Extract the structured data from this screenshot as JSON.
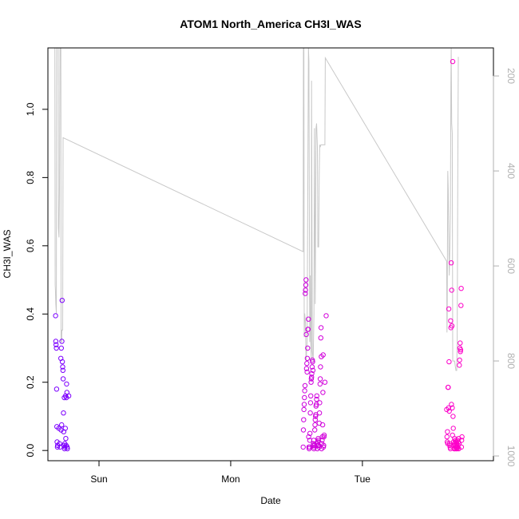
{
  "chart_data": {
    "type": "scatter",
    "title": "ATOM1 North_America CH3I_WAS",
    "xlabel": "Date",
    "ylabel": "CH3I_WAS",
    "x_ticks": [
      {
        "label": "Sun",
        "value": 1.0
      },
      {
        "label": "Mon",
        "value": 2.0
      },
      {
        "label": "Tue",
        "value": 3.0
      }
    ],
    "xlim": [
      0.612,
      3.995
    ],
    "ylim": [
      -0.03,
      1.18
    ],
    "y_ticks": [
      "0.0",
      "0.2",
      "0.4",
      "0.6",
      "0.8",
      "1.0"
    ],
    "y_tick_values": [
      0.0,
      0.2,
      0.4,
      0.6,
      0.8,
      1.0
    ],
    "y2_label": "",
    "y2_ticks": [
      "200",
      "400",
      "600",
      "800",
      "1000"
    ],
    "y2_tick_values": [
      200,
      400,
      600,
      800,
      1000
    ],
    "y2lim": [
      1010,
      141
    ],
    "grid": false,
    "point_color_start": "#7a00ff",
    "point_color_end": "#ff00c8",
    "line_color": "#c8c8c8",
    "series": [
      {
        "marker": "open-circle",
        "points": [
          [
            0.67,
            0.395
          ],
          [
            0.672,
            0.32
          ],
          [
            0.674,
            0.31
          ],
          [
            0.676,
            0.3
          ],
          [
            0.678,
            0.18
          ],
          [
            0.68,
            0.07
          ],
          [
            0.682,
            0.025
          ],
          [
            0.684,
            0.01
          ],
          [
            0.686,
            0.015
          ],
          [
            0.695,
            0.065
          ],
          [
            0.7,
            0.02
          ],
          [
            0.705,
            0.01
          ],
          [
            0.71,
            0.27
          ],
          [
            0.712,
            0.06
          ],
          [
            0.714,
            0.3
          ],
          [
            0.716,
            0.075
          ],
          [
            0.718,
            0.32
          ],
          [
            0.72,
            0.44
          ],
          [
            0.722,
            0.26
          ],
          [
            0.724,
            0.245
          ],
          [
            0.726,
            0.235
          ],
          [
            0.728,
            0.21
          ],
          [
            0.73,
            0.11
          ],
          [
            0.732,
            0.055
          ],
          [
            0.734,
            0.015
          ],
          [
            0.736,
            0.155
          ],
          [
            0.738,
            0.005
          ],
          [
            0.74,
            0.02
          ],
          [
            0.742,
            0.01
          ],
          [
            0.744,
            0.065
          ],
          [
            0.746,
            0.16
          ],
          [
            0.748,
            0.035
          ],
          [
            0.75,
            0.015
          ],
          [
            0.752,
            0.155
          ],
          [
            0.754,
            0.195
          ],
          [
            0.756,
            0.17
          ],
          [
            0.758,
            0.01
          ],
          [
            0.76,
            0.005
          ],
          [
            0.77,
            0.16
          ],
          [
            2.55,
            0.01
          ],
          [
            2.552,
            0.06
          ],
          [
            2.554,
            0.09
          ],
          [
            2.556,
            0.12
          ],
          [
            2.558,
            0.135
          ],
          [
            2.56,
            0.155
          ],
          [
            2.562,
            0.175
          ],
          [
            2.564,
            0.19
          ],
          [
            2.566,
            0.46
          ],
          [
            2.568,
            0.47
          ],
          [
            2.57,
            0.485
          ],
          [
            2.572,
            0.5
          ],
          [
            2.574,
            0.34
          ],
          [
            2.576,
            0.24
          ],
          [
            2.578,
            0.255
          ],
          [
            2.58,
            0.23
          ],
          [
            2.582,
            0.27
          ],
          [
            2.584,
            0.3
          ],
          [
            2.586,
            0.355
          ],
          [
            2.588,
            0.355
          ],
          [
            2.59,
            0.385
          ],
          [
            2.592,
            0.04
          ],
          [
            2.594,
            0.01
          ],
          [
            2.596,
            0.005
          ],
          [
            2.598,
            0.01
          ],
          [
            2.6,
            0.03
          ],
          [
            2.602,
            0.05
          ],
          [
            2.604,
            0.11
          ],
          [
            2.606,
            0.14
          ],
          [
            2.608,
            0.16
          ],
          [
            2.61,
            0.2
          ],
          [
            2.612,
            0.21
          ],
          [
            2.614,
            0.215
          ],
          [
            2.616,
            0.225
          ],
          [
            2.618,
            0.245
          ],
          [
            2.62,
            0.265
          ],
          [
            2.622,
            0.26
          ],
          [
            2.624,
            0.235
          ],
          [
            2.626,
            0.015
          ],
          [
            2.628,
            0.02
          ],
          [
            2.63,
            0.03
          ],
          [
            2.632,
            0.005
          ],
          [
            2.634,
            0.01
          ],
          [
            2.636,
            0.015
          ],
          [
            2.638,
            0.06
          ],
          [
            2.64,
            0.075
          ],
          [
            2.642,
            0.09
          ],
          [
            2.644,
            0.1
          ],
          [
            2.646,
            0.105
          ],
          [
            2.648,
            0.13
          ],
          [
            2.65,
            0.135
          ],
          [
            2.652,
            0.15
          ],
          [
            2.654,
            0.16
          ],
          [
            2.656,
            0.02
          ],
          [
            2.658,
            0.005
          ],
          [
            2.66,
            0.015
          ],
          [
            2.662,
            0.025
          ],
          [
            2.664,
            0.035
          ],
          [
            2.666,
            0.03
          ],
          [
            2.668,
            0.015
          ],
          [
            2.67,
            0.01
          ],
          [
            2.672,
            0.08
          ],
          [
            2.674,
            0.11
          ],
          [
            2.676,
            0.14
          ],
          [
            2.678,
            0.195
          ],
          [
            2.68,
            0.21
          ],
          [
            2.682,
            0.245
          ],
          [
            2.684,
            0.33
          ],
          [
            2.686,
            0.36
          ],
          [
            2.688,
            0.275
          ],
          [
            2.69,
            0.005
          ],
          [
            2.692,
            0.02
          ],
          [
            2.694,
            0.03
          ],
          [
            2.696,
            0.04
          ],
          [
            2.698,
            0.075
          ],
          [
            2.7,
            0.17
          ],
          [
            2.702,
            0.28
          ],
          [
            2.704,
            0.01
          ],
          [
            2.706,
            0.015
          ],
          [
            2.708,
            0.04
          ],
          [
            2.71,
            0.045
          ],
          [
            2.715,
            0.2
          ],
          [
            2.725,
            0.395
          ],
          [
            3.64,
            0.12
          ],
          [
            3.642,
            0.04
          ],
          [
            3.644,
            0.025
          ],
          [
            3.646,
            0.055
          ],
          [
            3.648,
            0.02
          ],
          [
            3.65,
            0.185
          ],
          [
            3.652,
            0.185
          ],
          [
            3.654,
            0.125
          ],
          [
            3.656,
            0.415
          ],
          [
            3.658,
            0.26
          ],
          [
            3.66,
            0.115
          ],
          [
            3.662,
            0.02
          ],
          [
            3.664,
            0.015
          ],
          [
            3.666,
            0.01
          ],
          [
            3.668,
            0.005
          ],
          [
            3.67,
            0.38
          ],
          [
            3.672,
            0.36
          ],
          [
            3.674,
            0.55
          ],
          [
            3.676,
            0.135
          ],
          [
            3.678,
            0.47
          ],
          [
            3.68,
            0.365
          ],
          [
            3.682,
            0.125
          ],
          [
            3.684,
            0.045
          ],
          [
            3.686,
            1.14
          ],
          [
            3.688,
            0.1
          ],
          [
            3.69,
            0.065
          ],
          [
            3.692,
            0.025
          ],
          [
            3.694,
            0.015
          ],
          [
            3.696,
            0.005
          ],
          [
            3.698,
            0.02
          ],
          [
            3.7,
            0.035
          ],
          [
            3.702,
            0.005
          ],
          [
            3.704,
            0.015
          ],
          [
            3.706,
            0.03
          ],
          [
            3.708,
            0.025
          ],
          [
            3.71,
            0.01
          ],
          [
            3.712,
            0.005
          ],
          [
            3.714,
            0.015
          ],
          [
            3.716,
            0.02
          ],
          [
            3.718,
            0.01
          ],
          [
            3.72,
            0.005
          ],
          [
            3.722,
            0.03
          ],
          [
            3.724,
            0.01
          ],
          [
            3.726,
            0.015
          ],
          [
            3.728,
            0.025
          ],
          [
            3.73,
            0.035
          ],
          [
            3.732,
            0.005
          ],
          [
            3.734,
            0.02
          ],
          [
            3.736,
            0.25
          ],
          [
            3.738,
            0.265
          ],
          [
            3.74,
            0.3
          ],
          [
            3.742,
            0.315
          ],
          [
            3.744,
            0.29
          ],
          [
            3.746,
            0.295
          ],
          [
            3.748,
            0.425
          ],
          [
            3.75,
            0.475
          ],
          [
            3.752,
            0.01
          ],
          [
            3.754,
            0.03
          ],
          [
            3.756,
            0.04
          ]
        ]
      }
    ],
    "right_axis_series": {
      "type": "line",
      "points": [
        [
          0.665,
          141
        ],
        [
          0.667,
          640
        ],
        [
          0.669,
          650
        ],
        [
          0.672,
          680
        ],
        [
          0.676,
          700
        ],
        [
          0.678,
          141
        ],
        [
          0.69,
          141
        ],
        [
          0.692,
          520
        ],
        [
          0.696,
          540
        ],
        [
          0.7,
          440
        ],
        [
          0.704,
          141
        ],
        [
          0.71,
          141
        ],
        [
          0.712,
          760
        ],
        [
          0.716,
          760
        ],
        [
          0.718,
          735
        ],
        [
          0.724,
          735
        ],
        [
          0.727,
          330
        ],
        [
          2.55,
          570
        ],
        [
          2.552,
          141
        ],
        [
          2.556,
          141
        ],
        [
          2.558,
          750
        ],
        [
          2.562,
          700
        ],
        [
          2.568,
          720
        ],
        [
          2.572,
          800
        ],
        [
          2.58,
          760
        ],
        [
          2.59,
          141
        ],
        [
          2.594,
          170
        ],
        [
          2.6,
          760
        ],
        [
          2.604,
          620
        ],
        [
          2.608,
          760
        ],
        [
          2.612,
          800
        ],
        [
          2.614,
          210
        ],
        [
          2.62,
          780
        ],
        [
          2.626,
          800
        ],
        [
          2.632,
          700
        ],
        [
          2.636,
          310
        ],
        [
          2.642,
          680
        ],
        [
          2.648,
          310
        ],
        [
          2.652,
          300
        ],
        [
          2.658,
          350
        ],
        [
          2.662,
          560
        ],
        [
          2.668,
          560
        ],
        [
          2.672,
          410
        ],
        [
          2.676,
          345
        ],
        [
          2.68,
          350
        ],
        [
          2.684,
          345
        ],
        [
          2.688,
          345
        ],
        [
          2.694,
          345
        ],
        [
          2.7,
          345
        ],
        [
          2.704,
          345
        ],
        [
          2.708,
          345
        ],
        [
          2.715,
          345
        ],
        [
          2.718,
          162
        ],
        [
          3.64,
          590
        ],
        [
          3.642,
          740
        ],
        [
          3.644,
          710
        ],
        [
          3.646,
          560
        ],
        [
          3.648,
          400
        ],
        [
          3.652,
          440
        ],
        [
          3.656,
          560
        ],
        [
          3.66,
          620
        ],
        [
          3.664,
          560
        ],
        [
          3.668,
          480
        ],
        [
          3.672,
          220
        ],
        [
          3.674,
          141
        ],
        [
          3.678,
          300
        ],
        [
          3.682,
          320
        ],
        [
          3.686,
          800
        ],
        [
          3.69,
          800
        ],
        [
          3.7,
          800
        ],
        [
          3.71,
          820
        ],
        [
          3.716,
          820
        ],
        [
          3.72,
          760
        ],
        [
          3.724,
          420
        ],
        [
          3.728,
          160
        ]
      ]
    }
  }
}
